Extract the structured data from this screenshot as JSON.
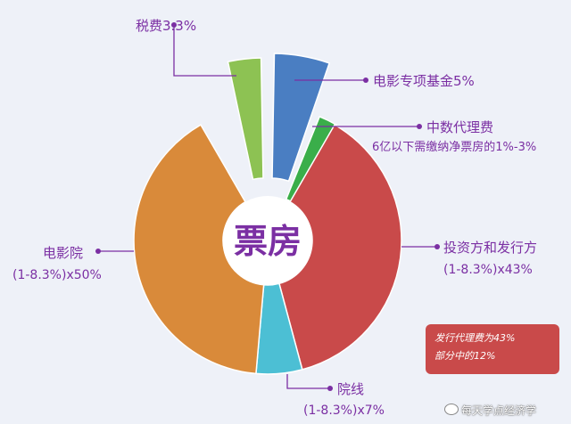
{
  "chart_data": {
    "type": "pie",
    "center_label": "票房",
    "slices": [
      {
        "label": "税费",
        "value_label": "3.3%",
        "value": 3.3,
        "color": "#8dc253"
      },
      {
        "label": "电影专项基金",
        "value_label": "5%",
        "value": 5,
        "color": "#4a7ec2"
      },
      {
        "label": "中数代理费",
        "value_label": "6亿以下需缴纳净票房的1%-3%",
        "value": 3,
        "color": "#3aae4a"
      },
      {
        "label": "投资方和发行方",
        "value_label": "(1-8.3%)x43%",
        "value": 39.4,
        "color": "#c94a4a"
      },
      {
        "label": "院线",
        "value_label": "(1-8.3%)x7%",
        "value": 6.4,
        "color": "#4cbfd4"
      },
      {
        "label": "电影院",
        "value_label": "(1-8.3%)x50%",
        "value": 45.9,
        "color": "#d98a3a"
      }
    ],
    "annotation": {
      "lines": [
        "发行代理费为43%",
        "部分中的12%"
      ],
      "color": "#c94a4a"
    }
  },
  "labels": {
    "tax": "税费3.3%",
    "fund": "电影专项基金5%",
    "agency_title": "中数代理费",
    "agency_sub": "6亿以下需缴纳净票房的1%-3%",
    "investor_title": "投资方和发行方",
    "investor_sub": "(1-8.3%)x43%",
    "cinema_title": "电影院",
    "cinema_sub": "(1-8.3%)x50%",
    "chain_title": "院线",
    "chain_sub": "(1-8.3%)x7%"
  },
  "watermark": "每天学点经济学",
  "colors": {
    "label_text": "#7b2fa3",
    "leader": "#7b2fa3"
  }
}
